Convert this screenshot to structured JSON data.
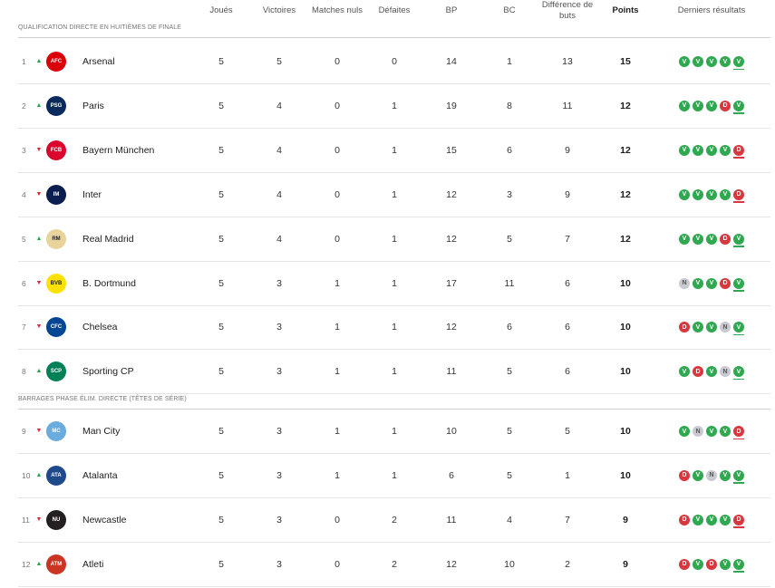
{
  "header": {
    "played": "Joués",
    "wins": "Victoires",
    "draws": "Matches nuls",
    "losses": "Défaites",
    "goals_for": "BP",
    "goals_against": "BC",
    "goal_diff": "Différence de buts",
    "points": "Points",
    "form": "Derniers résultats"
  },
  "sections": [
    "QUALIFICATION DIRECTE EN HUITIÈMES DE FINALE",
    "BARRAGES PHASE ÉLIM. DIRECTE (TÊTES DE SÉRIE)"
  ],
  "colors": {
    "win": "#2fa84f",
    "loss": "#d9363e",
    "draw": "#c9c9d2",
    "up": "#28a745",
    "down": "#e0262f"
  },
  "rows": [
    {
      "rank": "1",
      "trend": "up",
      "team": "Arsenal",
      "crest": "arsenal-crest",
      "played": "5",
      "wins": "5",
      "draws": "0",
      "losses": "0",
      "gf": "14",
      "ga": "1",
      "gd": "13",
      "pts": "15",
      "form": [
        "V",
        "V",
        "V",
        "V",
        "V"
      ]
    },
    {
      "rank": "2",
      "trend": "up",
      "team": "Paris",
      "crest": "psg-crest",
      "played": "5",
      "wins": "4",
      "draws": "0",
      "losses": "1",
      "gf": "19",
      "ga": "8",
      "gd": "11",
      "pts": "12",
      "form": [
        "V",
        "V",
        "V",
        "D",
        "V"
      ]
    },
    {
      "rank": "3",
      "trend": "down",
      "team": "Bayern München",
      "crest": "bayern-crest",
      "played": "5",
      "wins": "4",
      "draws": "0",
      "losses": "1",
      "gf": "15",
      "ga": "6",
      "gd": "9",
      "pts": "12",
      "form": [
        "V",
        "V",
        "V",
        "V",
        "D"
      ]
    },
    {
      "rank": "4",
      "trend": "down",
      "team": "Inter",
      "crest": "inter-crest",
      "played": "5",
      "wins": "4",
      "draws": "0",
      "losses": "1",
      "gf": "12",
      "ga": "3",
      "gd": "9",
      "pts": "12",
      "form": [
        "V",
        "V",
        "V",
        "V",
        "D"
      ]
    },
    {
      "rank": "5",
      "trend": "up",
      "team": "Real Madrid",
      "crest": "real-madrid-crest",
      "played": "5",
      "wins": "4",
      "draws": "0",
      "losses": "1",
      "gf": "12",
      "ga": "5",
      "gd": "7",
      "pts": "12",
      "form": [
        "V",
        "V",
        "V",
        "D",
        "V"
      ]
    },
    {
      "rank": "6",
      "trend": "down",
      "team": "B. Dortmund",
      "crest": "dortmund-crest",
      "played": "5",
      "wins": "3",
      "draws": "1",
      "losses": "1",
      "gf": "17",
      "ga": "11",
      "gd": "6",
      "pts": "10",
      "form": [
        "N",
        "V",
        "V",
        "D",
        "V"
      ]
    },
    {
      "rank": "7",
      "trend": "down",
      "team": "Chelsea",
      "crest": "chelsea-crest",
      "played": "5",
      "wins": "3",
      "draws": "1",
      "losses": "1",
      "gf": "12",
      "ga": "6",
      "gd": "6",
      "pts": "10",
      "form": [
        "D",
        "V",
        "V",
        "N",
        "V"
      ]
    },
    {
      "rank": "8",
      "trend": "up",
      "team": "Sporting CP",
      "crest": "sporting-crest",
      "played": "5",
      "wins": "3",
      "draws": "1",
      "losses": "1",
      "gf": "11",
      "ga": "5",
      "gd": "6",
      "pts": "10",
      "form": [
        "V",
        "D",
        "V",
        "N",
        "V"
      ]
    },
    {
      "rank": "9",
      "trend": "down",
      "team": "Man City",
      "crest": "man-city-crest",
      "played": "5",
      "wins": "3",
      "draws": "1",
      "losses": "1",
      "gf": "10",
      "ga": "5",
      "gd": "5",
      "pts": "10",
      "form": [
        "V",
        "N",
        "V",
        "V",
        "D"
      ]
    },
    {
      "rank": "10",
      "trend": "up",
      "team": "Atalanta",
      "crest": "atalanta-crest",
      "played": "5",
      "wins": "3",
      "draws": "1",
      "losses": "1",
      "gf": "6",
      "ga": "5",
      "gd": "1",
      "pts": "10",
      "form": [
        "D",
        "V",
        "N",
        "V",
        "V"
      ]
    },
    {
      "rank": "11",
      "trend": "down",
      "team": "Newcastle",
      "crest": "newcastle-crest",
      "played": "5",
      "wins": "3",
      "draws": "0",
      "losses": "2",
      "gf": "11",
      "ga": "4",
      "gd": "7",
      "pts": "9",
      "form": [
        "D",
        "V",
        "V",
        "V",
        "D"
      ]
    },
    {
      "rank": "12",
      "trend": "up",
      "team": "Atleti",
      "crest": "atleti-crest",
      "played": "5",
      "wins": "3",
      "draws": "0",
      "losses": "2",
      "gf": "12",
      "ga": "10",
      "gd": "2",
      "pts": "9",
      "form": [
        "D",
        "V",
        "D",
        "V",
        "V"
      ]
    }
  ]
}
